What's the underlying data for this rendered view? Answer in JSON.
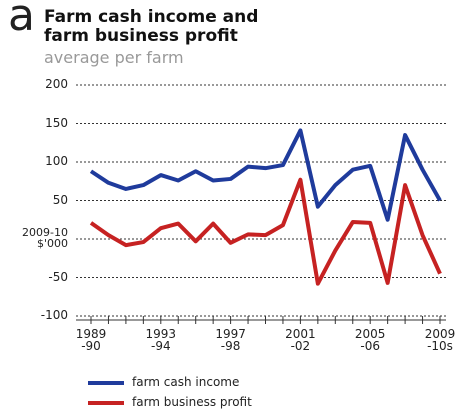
{
  "chart_data": {
    "type": "line",
    "panel_label": "a",
    "title": "Farm cash income and farm business profit",
    "subtitle": "average per farm",
    "categories": [
      "1989\n-90",
      null,
      null,
      null,
      "1993\n-94",
      null,
      null,
      null,
      "1997\n-98",
      null,
      null,
      null,
      "2001\n-02",
      null,
      null,
      null,
      "2005\n-06",
      null,
      null,
      null,
      "2009\n-10s"
    ],
    "series": [
      {
        "name": "farm cash income",
        "color": "#1f3b9c",
        "values": [
          88,
          73,
          65,
          70,
          83,
          76,
          88,
          76,
          78,
          94,
          92,
          96,
          141,
          42,
          70,
          90,
          95,
          25,
          135,
          90,
          50
        ]
      },
      {
        "name": "farm business profit",
        "color": "#c62222",
        "values": [
          21,
          5,
          -8,
          -4,
          14,
          20,
          -3,
          20,
          -5,
          6,
          5,
          18,
          77,
          -58,
          -15,
          22,
          21,
          -57,
          70,
          5,
          -45
        ]
      }
    ],
    "ylim": [
      -100,
      200
    ],
    "yticks": [
      -100,
      -50,
      {
        "value": 0,
        "label": "2009-10\n$'000"
      },
      50,
      100,
      150,
      200
    ],
    "grid": true
  }
}
